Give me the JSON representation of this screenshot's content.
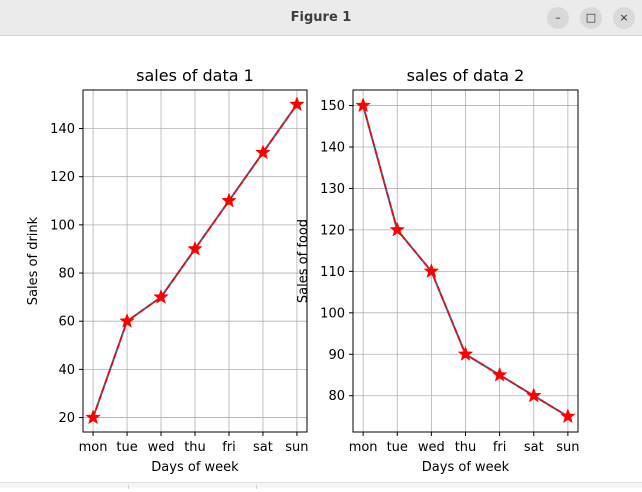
{
  "window": {
    "title": "Figure 1"
  },
  "window_controls": {
    "minimize": "–",
    "maximize": "□",
    "close": "×"
  },
  "colors": {
    "line": "#4a5f8c",
    "dash": "#ff0000",
    "marker": "#ff0000",
    "grid": "#b0b0b0",
    "axes": "#000000"
  },
  "chart_data": [
    {
      "type": "line",
      "title": "sales of data 1",
      "xlabel": "Days of week",
      "ylabel": "Sales of drink",
      "categories": [
        "mon",
        "tue",
        "wed",
        "thu",
        "fri",
        "sat",
        "sun"
      ],
      "series": [
        {
          "values": [
            20,
            60,
            70,
            90,
            110,
            130,
            150
          ]
        }
      ],
      "yticks": [
        20,
        40,
        60,
        80,
        100,
        120,
        140
      ],
      "ylim": [
        14,
        156
      ],
      "marker": "star",
      "line_style": "solid with red dashed overlay",
      "grid": true
    },
    {
      "type": "line",
      "title": "sales of data 2",
      "xlabel": "Days of week",
      "ylabel": "Sales of food",
      "categories": [
        "mon",
        "tue",
        "wed",
        "thu",
        "fri",
        "sat",
        "sun"
      ],
      "series": [
        {
          "values": [
            150,
            120,
            110,
            90,
            85,
            80,
            75
          ]
        }
      ],
      "yticks": [
        80,
        90,
        100,
        110,
        120,
        130,
        140,
        150
      ],
      "ylim": [
        71.25,
        153.75
      ],
      "marker": "star",
      "line_style": "solid with red dashed overlay",
      "grid": true
    }
  ]
}
